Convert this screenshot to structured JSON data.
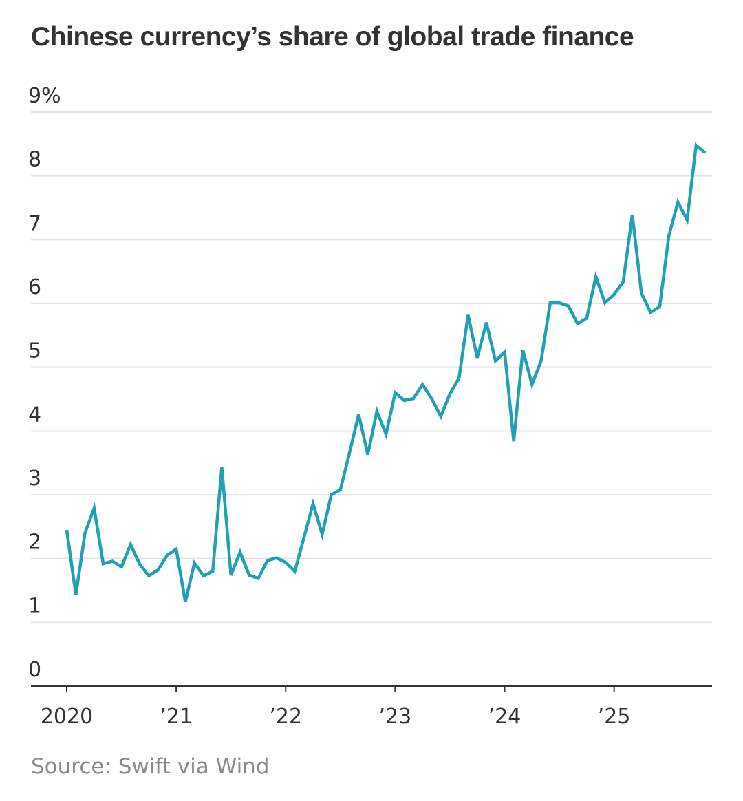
{
  "title": "Chinese currency’s share of global trade finance",
  "source": "Source: Swift via Wind",
  "colors": {
    "line": "#1fa0b3",
    "grid": "#e3e3e3",
    "axis": "#333333",
    "text": "#333333",
    "source": "#8a8a8a"
  },
  "chart_data": {
    "type": "line",
    "title": "Chinese currency’s share of global trade finance",
    "ylabel": "",
    "xlabel": "",
    "unit": "%",
    "ylim": [
      0,
      9
    ],
    "yticks": [
      0,
      1,
      2,
      3,
      4,
      5,
      6,
      7,
      8,
      9
    ],
    "ytick_labels": [
      "0",
      "1",
      "2",
      "3",
      "4",
      "5",
      "6",
      "7",
      "8",
      "9%"
    ],
    "xlim": [
      "2020-01",
      "2025-11"
    ],
    "xticks": [
      "2020-01",
      "2021-01",
      "2022-01",
      "2023-01",
      "2024-01",
      "2025-01"
    ],
    "xtick_labels": [
      "2020",
      "’21",
      "’22",
      "’23",
      "’24",
      "’25"
    ],
    "grid": true,
    "legend": "none",
    "series": [
      {
        "x": [
          "2020-01",
          "2020-02",
          "2020-03",
          "2020-04",
          "2020-05",
          "2020-06",
          "2020-07",
          "2020-08",
          "2020-09",
          "2020-10",
          "2020-11",
          "2020-12",
          "2021-01",
          "2021-02",
          "2021-03",
          "2021-04",
          "2021-05",
          "2021-06",
          "2021-07",
          "2021-08",
          "2021-09",
          "2021-10",
          "2021-11",
          "2021-12",
          "2022-01",
          "2022-02",
          "2022-03",
          "2022-04",
          "2022-05",
          "2022-06",
          "2022-07",
          "2022-08",
          "2022-09",
          "2022-10",
          "2022-11",
          "2022-12",
          "2023-01",
          "2023-02",
          "2023-03",
          "2023-04",
          "2023-05",
          "2023-06",
          "2023-07",
          "2023-08",
          "2023-09",
          "2023-10",
          "2023-11",
          "2023-12",
          "2024-01",
          "2024-02",
          "2024-03",
          "2024-04",
          "2024-05",
          "2024-06",
          "2024-07",
          "2024-08",
          "2024-09",
          "2024-10",
          "2024-11",
          "2024-12",
          "2025-01",
          "2025-02",
          "2025-03",
          "2025-04",
          "2025-05",
          "2025-06",
          "2025-07",
          "2025-08",
          "2025-09",
          "2025-10",
          "2025-11"
        ],
        "values": [
          2.45,
          1.43,
          2.4,
          2.79,
          1.92,
          1.96,
          1.87,
          2.22,
          1.91,
          1.73,
          1.82,
          2.05,
          2.15,
          1.32,
          1.93,
          1.73,
          1.8,
          3.43,
          1.74,
          2.1,
          1.74,
          1.69,
          1.97,
          2.01,
          1.94,
          1.8,
          2.33,
          2.86,
          2.38,
          3.0,
          3.08,
          3.66,
          4.26,
          3.63,
          4.31,
          3.95,
          4.6,
          4.48,
          4.51,
          4.73,
          4.51,
          4.23,
          4.58,
          4.83,
          5.82,
          5.15,
          5.7,
          5.1,
          5.24,
          3.84,
          5.27,
          4.73,
          5.1,
          6.01,
          6.01,
          5.96,
          5.68,
          5.77,
          6.42,
          6.01,
          6.14,
          6.34,
          7.39,
          6.16,
          5.86,
          5.95,
          7.06,
          7.59,
          7.31,
          8.48,
          8.36
        ]
      }
    ]
  }
}
